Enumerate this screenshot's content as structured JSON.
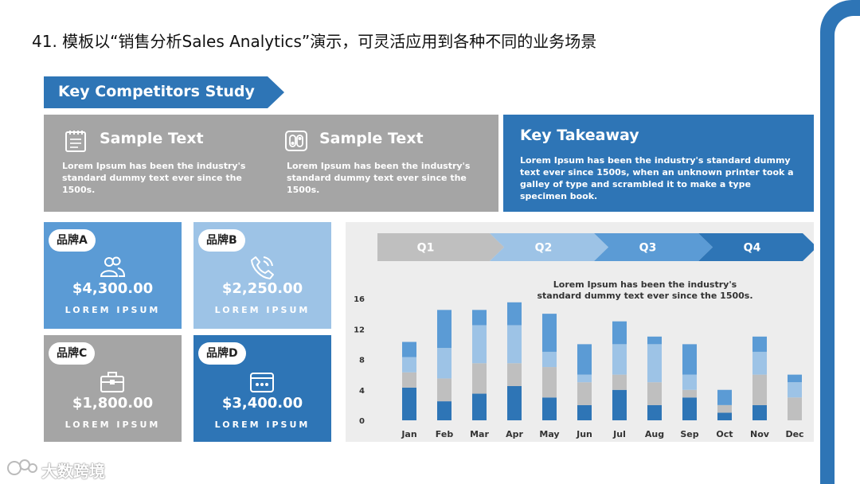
{
  "page": {
    "title": "41. 模板以“销售分析Sales Analytics”演示，可灵活应用到各种不同的业务场景"
  },
  "banner": {
    "label": "Key Competitors Study"
  },
  "samples": [
    {
      "icon": "notepad-icon",
      "title": "Sample Text",
      "body": "Lorem Ipsum has been the industry's standard dummy text ever since the 1500s."
    },
    {
      "icon": "toggle-switch-icon",
      "title": "Sample Text",
      "body": "Lorem Ipsum has been the industry's standard dummy text ever since the 1500s."
    }
  ],
  "takeaway": {
    "title": "Key Takeaway",
    "body": "Lorem Ipsum has been the industry's standard dummy text ever since 1500s, when an unknown printer took a galley of type and scrambled it to make a type specimen book."
  },
  "brands": [
    {
      "name": "品牌A",
      "amount": "$4,300.00",
      "sub": "LOREM IPSUM",
      "icon": "users-icon",
      "color": "#5B9BD5"
    },
    {
      "name": "品牌B",
      "amount": "$2,250.00",
      "sub": "LOREM IPSUM",
      "icon": "phone-call-icon",
      "color": "#9DC3E6"
    },
    {
      "name": "品牌C",
      "amount": "$1,800.00",
      "sub": "LOREM IPSUM",
      "icon": "toolbox-icon",
      "color": "#A5A5A5"
    },
    {
      "name": "品牌D",
      "amount": "$3,400.00",
      "sub": "LOREM IPSUM",
      "icon": "wallet-icon",
      "color": "#2E75B6"
    }
  ],
  "quarters": [
    {
      "label": "Q1",
      "color": "#BFBFBF"
    },
    {
      "label": "Q2",
      "color": "#9DC3E6"
    },
    {
      "label": "Q3",
      "color": "#5B9BD5"
    },
    {
      "label": "Q4",
      "color": "#2E75B6"
    }
  ],
  "chart_note": "Lorem Ipsum has been the industry's standard dummy text ever since the 1500s.",
  "chart_data": {
    "type": "bar",
    "stacked": true,
    "categories": [
      "Jan",
      "Feb",
      "Mar",
      "Apr",
      "May",
      "Jun",
      "Jul",
      "Aug",
      "Sep",
      "Oct",
      "Nov",
      "Dec"
    ],
    "ylim": [
      0,
      16
    ],
    "yticks": [
      0,
      4,
      8,
      12,
      16
    ],
    "grid": false,
    "series": [
      {
        "values": [
          4.3,
          2.5,
          3.5,
          4.5,
          3.0,
          2.0,
          4.0,
          2.0,
          3.0,
          1.0,
          2.0,
          0.0
        ],
        "color": "#2E75B6"
      },
      {
        "values": [
          2.0,
          3.0,
          4.0,
          3.0,
          4.0,
          3.0,
          2.0,
          3.0,
          1.0,
          1.0,
          4.0,
          3.0
        ],
        "color": "#BFBFBF"
      },
      {
        "values": [
          2.0,
          4.0,
          5.0,
          5.0,
          2.0,
          1.0,
          4.0,
          5.0,
          2.0,
          0.0,
          3.0,
          2.0
        ],
        "color": "#9DC3E6"
      },
      {
        "values": [
          2.0,
          5.0,
          2.0,
          3.0,
          5.0,
          4.0,
          3.0,
          1.0,
          4.0,
          2.0,
          2.0,
          1.0
        ],
        "color": "#5B9BD5"
      }
    ]
  },
  "footer": {
    "logo_text": "大数跨境"
  },
  "colors": {
    "accent": "#2E75B6",
    "gray": "#A5A5A5",
    "panel": "#EDEDED"
  }
}
